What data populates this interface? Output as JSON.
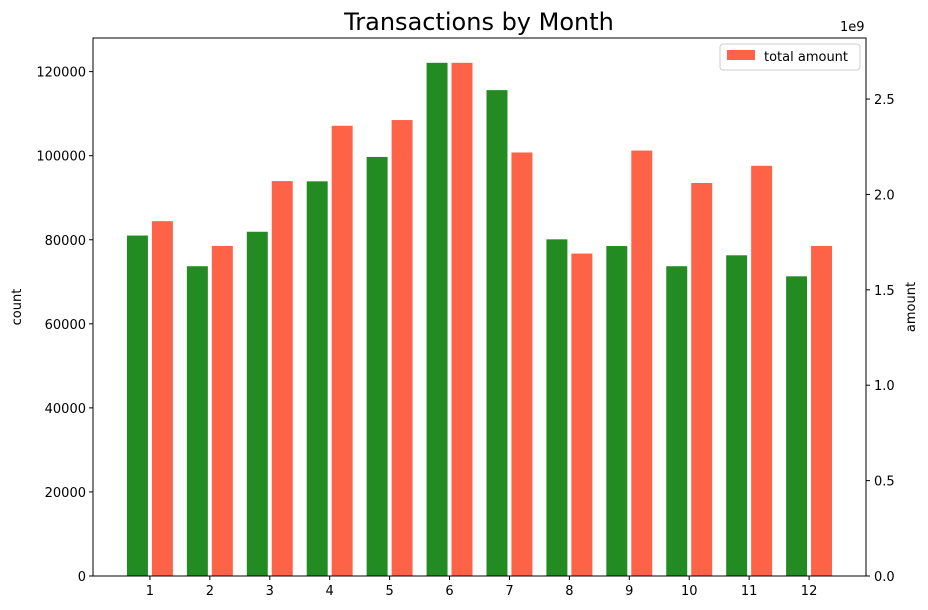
{
  "chart_data": {
    "type": "bar",
    "title": "Transactions by Month",
    "xlabel": "",
    "categories": [
      "1",
      "2",
      "3",
      "4",
      "5",
      "6",
      "7",
      "8",
      "9",
      "10",
      "11",
      "12"
    ],
    "series": [
      {
        "name": "",
        "axis": "left",
        "color": "#228b22",
        "values": [
          81000,
          73700,
          81900,
          93900,
          99700,
          122100,
          115600,
          80100,
          78500,
          73700,
          76300,
          71300
        ]
      },
      {
        "name": "total amount",
        "axis": "right",
        "color": "#ff6347",
        "values": [
          1860000000.0,
          1730000000.0,
          2070000000.0,
          2360000000.0,
          2390000000.0,
          2690000000.0,
          2220000000.0,
          1690000000.0,
          2230000000.0,
          2060000000.0,
          2150000000.0,
          1730000000.0
        ]
      }
    ],
    "y_left": {
      "label": "count",
      "ylim": [
        0,
        128000
      ],
      "ticks": [
        0,
        20000,
        40000,
        60000,
        80000,
        100000,
        120000
      ],
      "tick_labels": [
        "0",
        "20000",
        "40000",
        "60000",
        "80000",
        "100000",
        "120000"
      ]
    },
    "y_right": {
      "label": "amount",
      "ylim": [
        0,
        2820000000.0
      ],
      "scale_label": "1e9",
      "ticks": [
        0,
        500000000.0,
        1000000000.0,
        1500000000.0,
        2000000000.0,
        2500000000.0
      ],
      "tick_labels": [
        "0.0",
        "0.5",
        "1.0",
        "1.5",
        "2.0",
        "2.5"
      ]
    },
    "grid": false,
    "legend": {
      "location": "upper-right",
      "entries": [
        "total amount"
      ]
    }
  }
}
